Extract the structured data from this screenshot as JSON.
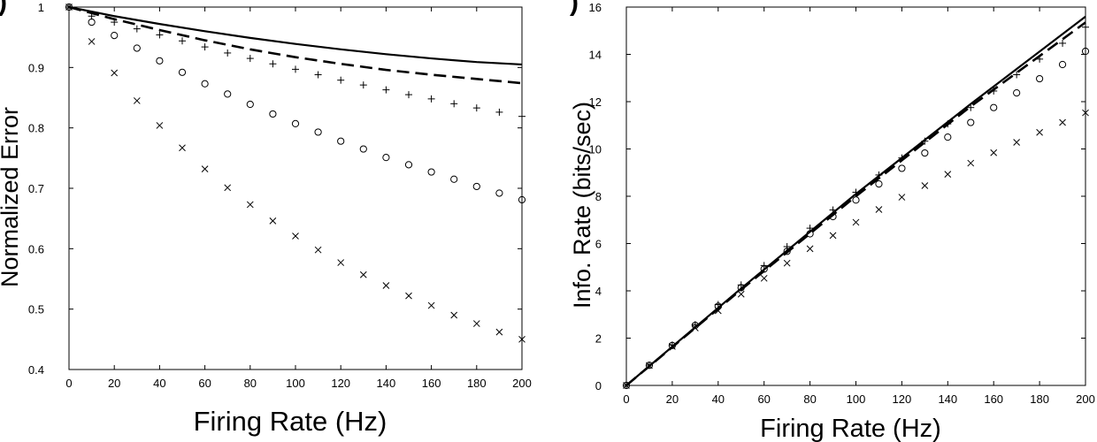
{
  "chart_data": [
    {
      "type": "line",
      "panel_label": ")",
      "xlabel": "Firing Rate (Hz)",
      "ylabel": "Normalized Error",
      "xlim": [
        0,
        200
      ],
      "ylim": [
        0.4,
        1.0
      ],
      "xticks": [
        0,
        20,
        40,
        60,
        80,
        100,
        120,
        140,
        160,
        180,
        200
      ],
      "yticks": [
        0.4,
        0.5,
        0.6,
        0.7,
        0.8,
        0.9,
        1
      ],
      "ytick_labels": [
        "0.4",
        "0.5",
        "0.6",
        "0.7",
        "0.8",
        "0.9",
        "1"
      ],
      "grid": false,
      "series": [
        {
          "style": "solid",
          "color": "#000000",
          "x": [
            0,
            20,
            40,
            60,
            80,
            100,
            120,
            140,
            160,
            180,
            200
          ],
          "y": [
            1.0,
            0.985,
            0.972,
            0.96,
            0.949,
            0.939,
            0.93,
            0.922,
            0.915,
            0.909,
            0.905
          ]
        },
        {
          "style": "dashed",
          "color": "#000000",
          "x": [
            0,
            20,
            40,
            60,
            80,
            100,
            120,
            140,
            160,
            180,
            200
          ],
          "y": [
            1.0,
            0.98,
            0.962,
            0.945,
            0.93,
            0.917,
            0.906,
            0.896,
            0.888,
            0.881,
            0.874
          ]
        },
        {
          "style": "plus",
          "color": "#000000",
          "x": [
            0,
            10,
            20,
            30,
            40,
            50,
            60,
            70,
            80,
            90,
            100,
            110,
            120,
            130,
            140,
            150,
            160,
            170,
            180,
            190,
            200
          ],
          "y": [
            1.0,
            0.985,
            0.975,
            0.964,
            0.954,
            0.944,
            0.934,
            0.924,
            0.915,
            0.906,
            0.897,
            0.888,
            0.879,
            0.871,
            0.863,
            0.855,
            0.848,
            0.84,
            0.833,
            0.826,
            0.819
          ]
        },
        {
          "style": "circle",
          "color": "#000000",
          "x": [
            0,
            10,
            20,
            30,
            40,
            50,
            60,
            70,
            80,
            90,
            100,
            110,
            120,
            130,
            140,
            150,
            160,
            170,
            180,
            190,
            200
          ],
          "y": [
            1.0,
            0.975,
            0.953,
            0.932,
            0.911,
            0.892,
            0.873,
            0.856,
            0.839,
            0.823,
            0.807,
            0.793,
            0.778,
            0.765,
            0.751,
            0.739,
            0.727,
            0.715,
            0.703,
            0.692,
            0.681
          ]
        },
        {
          "style": "cross",
          "color": "#000000",
          "x": [
            0,
            10,
            20,
            30,
            40,
            50,
            60,
            70,
            80,
            90,
            100,
            110,
            120,
            130,
            140,
            150,
            160,
            170,
            180,
            190,
            200
          ],
          "y": [
            1.0,
            0.943,
            0.891,
            0.845,
            0.804,
            0.767,
            0.732,
            0.701,
            0.673,
            0.646,
            0.621,
            0.598,
            0.577,
            0.557,
            0.539,
            0.522,
            0.506,
            0.49,
            0.476,
            0.462,
            0.45
          ]
        }
      ]
    },
    {
      "type": "line",
      "panel_label": ")",
      "xlabel": "Firing Rate (Hz)",
      "ylabel": "Info. Rate (bits/sec)",
      "xlim": [
        0,
        200
      ],
      "ylim": [
        0,
        16
      ],
      "xticks": [
        0,
        20,
        40,
        60,
        80,
        100,
        120,
        140,
        160,
        180,
        200
      ],
      "yticks": [
        0,
        2,
        4,
        6,
        8,
        10,
        12,
        14,
        16
      ],
      "ytick_labels": [
        "0",
        "2",
        "4",
        "6",
        "8",
        "10",
        "12",
        "14",
        "16"
      ],
      "grid": false,
      "series": [
        {
          "style": "solid",
          "color": "#000000",
          "x": [
            0,
            50,
            100,
            150,
            200
          ],
          "y": [
            0,
            4.1,
            8.1,
            11.9,
            15.6
          ]
        },
        {
          "style": "dashed",
          "color": "#000000",
          "x": [
            0,
            50,
            100,
            150,
            200
          ],
          "y": [
            0,
            4.05,
            8.0,
            11.8,
            15.35
          ]
        },
        {
          "style": "plus",
          "color": "#000000",
          "x": [
            0,
            10,
            20,
            30,
            40,
            50,
            60,
            70,
            80,
            90,
            100,
            110,
            120,
            130,
            140,
            150,
            160,
            170,
            180,
            190,
            200
          ],
          "y": [
            0,
            0.86,
            1.71,
            2.57,
            3.42,
            4.25,
            5.07,
            5.87,
            6.65,
            7.42,
            8.17,
            8.9,
            9.62,
            10.33,
            11.06,
            11.75,
            12.45,
            13.14,
            13.8,
            14.47,
            15.15
          ]
        },
        {
          "style": "circle",
          "color": "#000000",
          "x": [
            0,
            10,
            20,
            30,
            40,
            50,
            60,
            70,
            80,
            90,
            100,
            110,
            120,
            130,
            140,
            150,
            160,
            170,
            180,
            190,
            200
          ],
          "y": [
            0,
            0.85,
            1.69,
            2.54,
            3.35,
            4.13,
            4.92,
            5.67,
            6.41,
            7.14,
            7.84,
            8.52,
            9.18,
            9.83,
            10.5,
            11.12,
            11.75,
            12.37,
            12.97,
            13.57,
            14.13
          ]
        },
        {
          "style": "cross",
          "color": "#000000",
          "x": [
            0,
            10,
            20,
            30,
            40,
            50,
            60,
            70,
            80,
            90,
            100,
            110,
            120,
            130,
            140,
            150,
            160,
            170,
            180,
            190,
            200
          ],
          "y": [
            0,
            0.84,
            1.65,
            2.43,
            3.16,
            3.86,
            4.53,
            5.17,
            5.78,
            6.34,
            6.9,
            7.44,
            7.96,
            8.45,
            8.93,
            9.4,
            9.84,
            10.28,
            10.7,
            11.12,
            11.53
          ]
        }
      ]
    }
  ]
}
